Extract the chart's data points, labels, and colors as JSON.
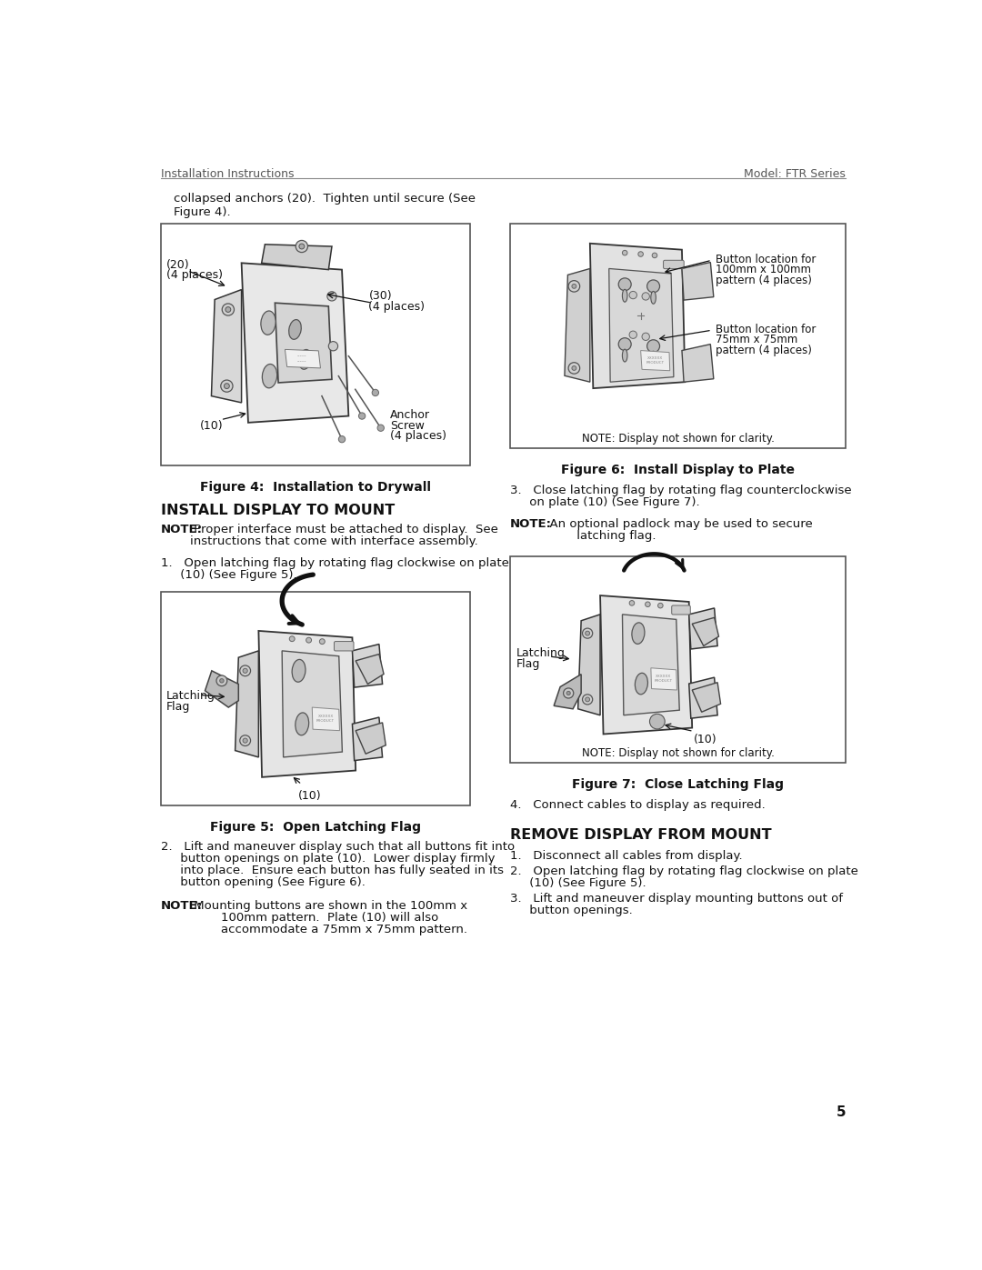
{
  "page_number": "5",
  "header_left": "Installation Instructions",
  "header_right": "Model: FTR Series",
  "bg_color": "#ffffff",
  "intro_text_line1": "collapsed anchors (20).  Tighten until secure (See",
  "intro_text_line2": "Figure 4).",
  "fig4_caption": "Figure 4:  Installation to Drywall",
  "fig5_caption": "Figure 5:  Open Latching Flag",
  "fig6_caption": "Figure 6:  Install Display to Plate",
  "fig7_caption": "Figure 7:  Close Latching Flag",
  "section1_title": "INSTALL DISPLAY TO MOUNT",
  "note1_bold": "NOTE:",
  "note1_rest": " Proper interface must be attached to display.  See",
  "note1_line2": "instructions that come with interface assembly.",
  "step1": "1.   Open latching flag by rotating flag clockwise on plate",
  "step1b": "     (10) (See Figure 5).",
  "step2": "2.   Lift and maneuver display such that all buttons fit into",
  "step2b": "     button openings on plate (10).  Lower display firmly",
  "step2c": "     into place.  Ensure each button has fully seated in its",
  "step2d": "     button opening (See Figure 6).",
  "note2_bold": "NOTE:",
  "note2_rest": " Mounting buttons are shown in the 100mm x",
  "note2_line2": "        100mm pattern.  Plate (10) will also",
  "note2_line3": "        accommodate a 75mm x 75mm pattern.",
  "step3_right": "3.   Close latching flag by rotating flag counterclockwise",
  "step3b_right": "     on plate (10) (See Figure 7).",
  "note3_bold": "NOTE:",
  "note3_rest": "  An optional padlock may be used to secure",
  "note3_line2": "         latching flag.",
  "step4_right": "4.   Connect cables to display as required.",
  "section2_title": "REMOVE DISPLAY FROM MOUNT",
  "remove_step1": "1.   Disconnect all cables from display.",
  "remove_step2": "2.   Open latching flag by rotating flag clockwise on plate",
  "remove_step2b": "     (10) (See Figure 5).",
  "remove_step3": "3.   Lift and maneuver display mounting buttons out of",
  "remove_step3b": "     button openings.",
  "fig6_label1": "Button location for",
  "fig6_label1b": "100mm x 100mm",
  "fig6_label1c": "pattern (4 places)",
  "fig6_label2": "Button location for",
  "fig6_label2b": "75mm x 75mm",
  "fig6_label2c": "pattern (4 places)",
  "note_clarity": "NOTE: Display not shown for clarity.",
  "fig4_label20": "(20)",
  "fig4_label20b": "(4 places)",
  "fig4_label30": "(30)",
  "fig4_label30b": "(4 places)",
  "fig4_label10": "(10)",
  "fig4_anchor": "Anchor",
  "fig4_anchor2": "Screw",
  "fig4_anchor3": "(4 places)",
  "fig5_latching": "Latching",
  "fig5_flag": "Flag",
  "fig5_10": "(10)",
  "fig7_latching": "Latching",
  "fig7_flag": "Flag",
  "fig7_10": "(10)"
}
